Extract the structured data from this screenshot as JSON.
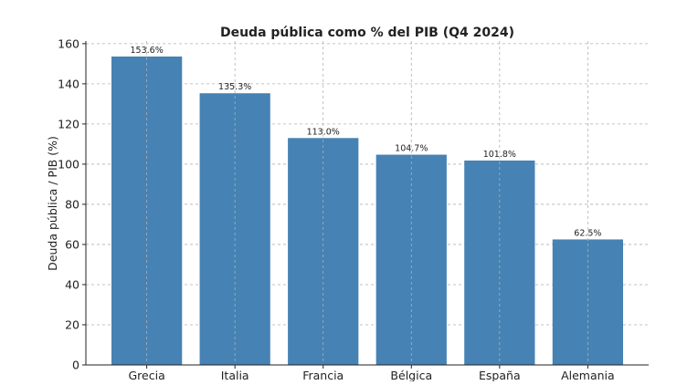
{
  "chart_data": {
    "type": "bar",
    "title": "Deuda pública como % del PIB (Q4 2024)",
    "xlabel": "",
    "ylabel": "Deuda pública / PIB (%)",
    "categories": [
      "Grecia",
      "Italia",
      "Francia",
      "Bélgica",
      "España",
      "Alemania"
    ],
    "values": [
      153.6,
      135.3,
      113.0,
      104.7,
      101.8,
      62.5
    ],
    "data_labels": [
      "153.6%",
      "135.3%",
      "113.0%",
      "104.7%",
      "101.8%",
      "62.5%"
    ],
    "yticks": [
      0,
      20,
      40,
      60,
      80,
      100,
      120,
      140,
      160
    ],
    "ylim": [
      0,
      161.3
    ],
    "grid": true,
    "bar_color": "#4682b4"
  }
}
